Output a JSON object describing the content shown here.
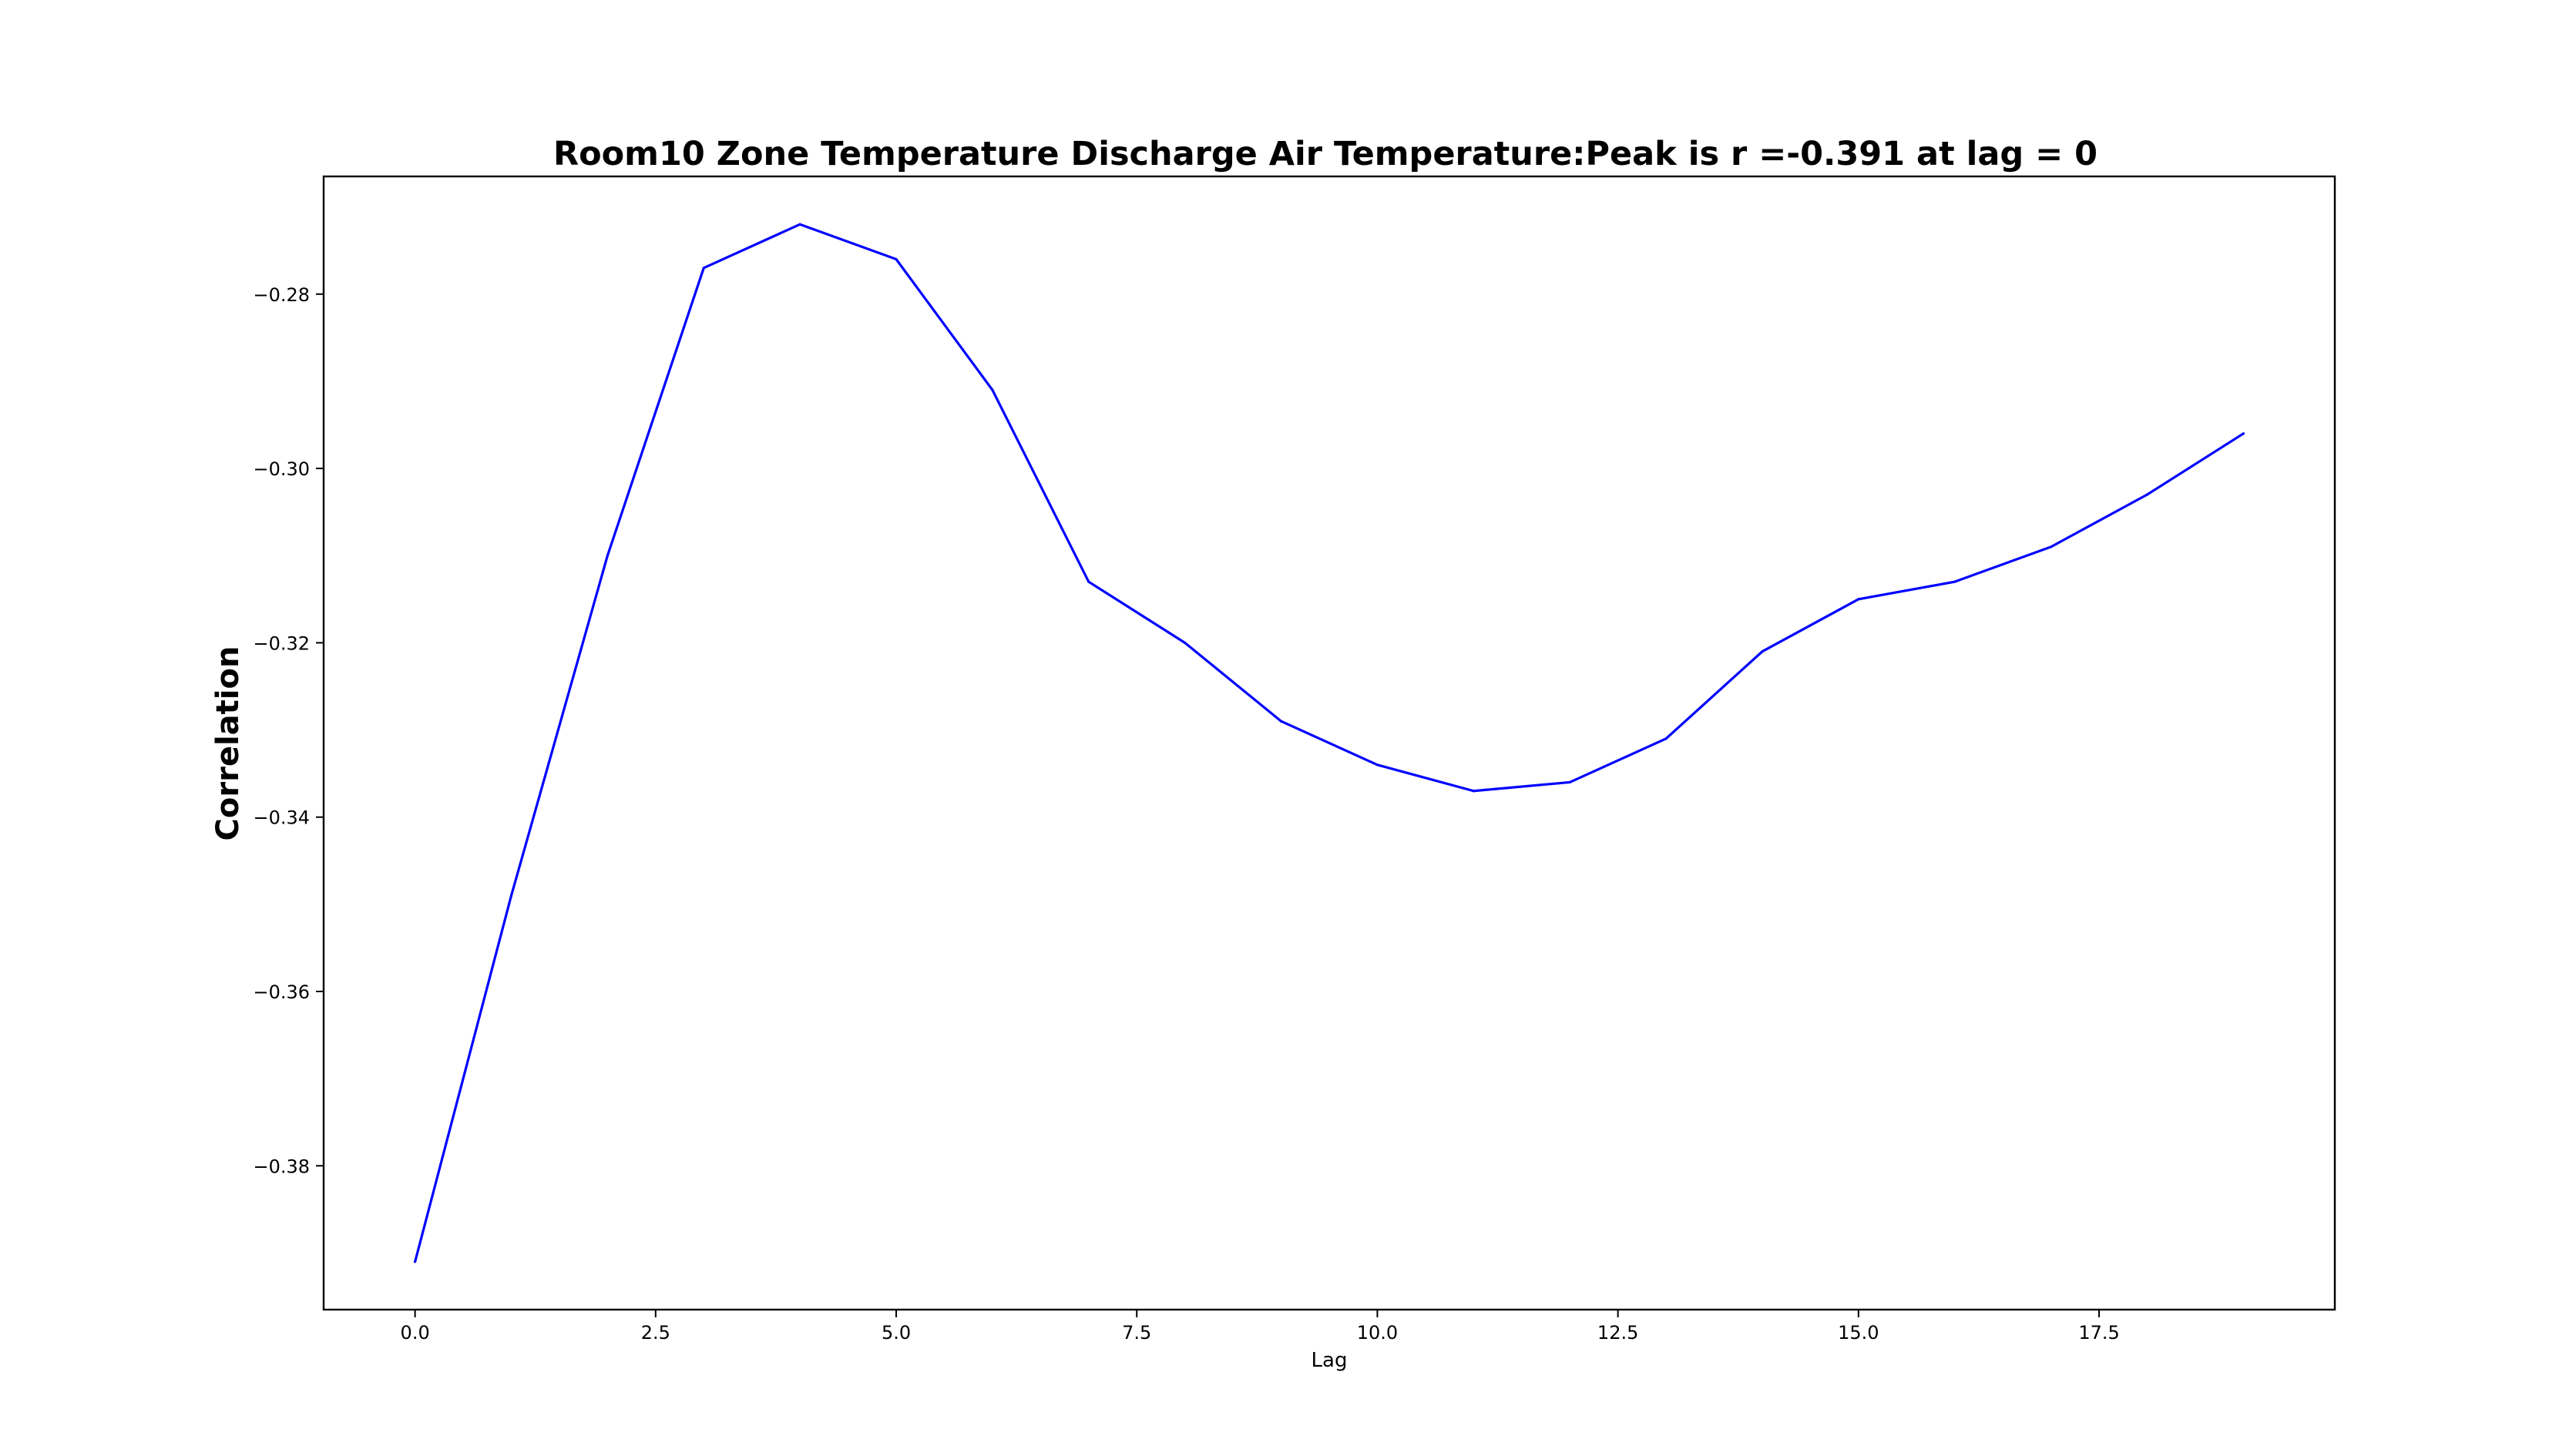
{
  "chart_data": {
    "type": "line",
    "title": "Room10 Zone Temperature Discharge Air Temperature:Peak is r =-0.391 at lag = 0",
    "xlabel": "Lag",
    "ylabel": "Correlation",
    "xlim": [
      -0.95,
      19.95
    ],
    "ylim": [
      -0.3965,
      -0.2665
    ],
    "x_ticks": [
      0.0,
      2.5,
      5.0,
      7.5,
      10.0,
      12.5,
      15.0,
      17.5
    ],
    "x_tick_labels": [
      "0.0",
      "2.5",
      "5.0",
      "7.5",
      "10.0",
      "12.5",
      "15.0",
      "17.5"
    ],
    "y_ticks": [
      -0.38,
      -0.36,
      -0.34,
      -0.32,
      -0.3,
      -0.28
    ],
    "y_tick_labels": [
      "−0.38",
      "−0.36",
      "−0.34",
      "−0.32",
      "−0.30",
      "−0.28"
    ],
    "grid": false,
    "series": [
      {
        "color": "#0000ff",
        "x": [
          0,
          1,
          2,
          3,
          4,
          5,
          6,
          7,
          8,
          9,
          10,
          11,
          12,
          13,
          14,
          15,
          16,
          17,
          18,
          19
        ],
        "y": [
          -0.391,
          -0.349,
          -0.31,
          -0.277,
          -0.272,
          -0.276,
          -0.291,
          -0.313,
          -0.32,
          -0.329,
          -0.334,
          -0.337,
          -0.336,
          -0.331,
          -0.321,
          -0.315,
          -0.313,
          -0.309,
          -0.303,
          -0.296
        ]
      }
    ]
  }
}
